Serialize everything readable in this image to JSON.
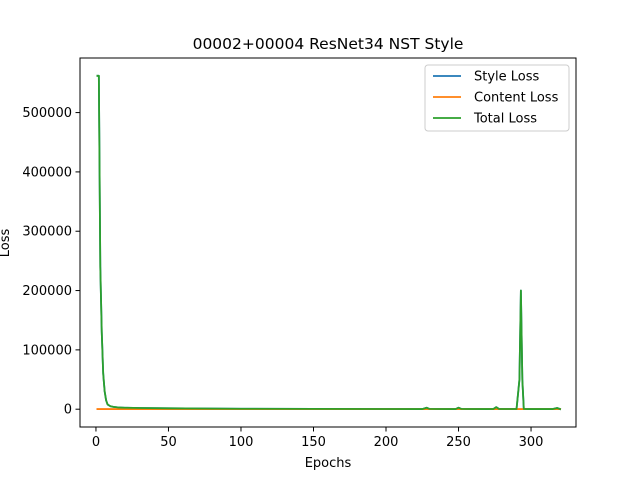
{
  "chart_data": {
    "type": "line",
    "title": "00002+00004 ResNet34 NST Style",
    "xlabel": "Epochs",
    "ylabel": "Loss",
    "xlim": [
      -11,
      331
    ],
    "ylim": [
      -30000,
      592000
    ],
    "xticks": [
      0,
      50,
      100,
      150,
      200,
      250,
      300
    ],
    "yticks": [
      0,
      100000,
      200000,
      300000,
      400000,
      500000
    ],
    "legend_position": "top-right",
    "grid": false,
    "series": [
      {
        "name": "Style Loss",
        "color": "#1f77b4",
        "x": [
          1,
          2,
          3,
          4,
          5,
          6,
          7,
          8,
          10,
          12,
          15,
          20,
          30,
          50,
          100,
          150,
          200,
          225,
          228,
          230,
          235,
          248,
          250,
          252,
          255,
          270,
          274,
          276,
          278,
          280,
          290,
          292,
          293,
          294,
          295,
          296,
          298,
          300,
          310,
          315,
          318,
          320
        ],
        "y": [
          562000,
          562000,
          240000,
          130000,
          60000,
          30000,
          15000,
          8000,
          5000,
          4000,
          3000,
          2500,
          2000,
          1500,
          800,
          500,
          300,
          250,
          2500,
          500,
          300,
          250,
          2500,
          500,
          300,
          250,
          400,
          3500,
          400,
          300,
          300,
          50000,
          200000,
          50000,
          500,
          300,
          250,
          250,
          250,
          250,
          2000,
          250
        ]
      },
      {
        "name": "Content Loss",
        "color": "#ff7f0e",
        "x": [
          1,
          50,
          100,
          150,
          200,
          250,
          300,
          320
        ],
        "y": [
          200,
          200,
          200,
          200,
          200,
          200,
          200,
          200
        ]
      },
      {
        "name": "Total Loss",
        "color": "#2ca02c",
        "x": [
          1,
          2,
          3,
          4,
          5,
          6,
          7,
          8,
          10,
          12,
          15,
          20,
          30,
          50,
          100,
          150,
          200,
          225,
          228,
          230,
          235,
          248,
          250,
          252,
          255,
          270,
          274,
          276,
          278,
          280,
          290,
          292,
          293,
          294,
          295,
          296,
          298,
          300,
          310,
          315,
          318,
          320
        ],
        "y": [
          562000,
          562000,
          240000,
          130000,
          60000,
          30000,
          15000,
          8000,
          5000,
          4000,
          3000,
          2500,
          2000,
          1500,
          800,
          500,
          300,
          250,
          2500,
          500,
          300,
          250,
          2500,
          500,
          300,
          250,
          400,
          3500,
          400,
          300,
          300,
          50000,
          200000,
          50000,
          500,
          300,
          250,
          250,
          250,
          250,
          2000,
          250
        ]
      }
    ]
  }
}
